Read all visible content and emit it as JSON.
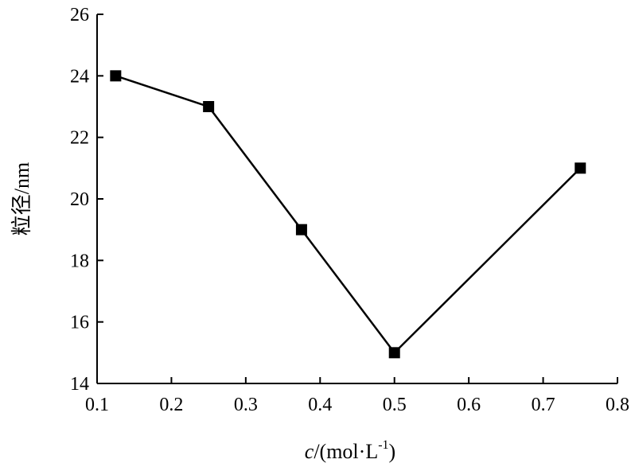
{
  "chart_data": {
    "type": "line",
    "xlabel": {
      "var": "c",
      "rest": "/(mol·L",
      "sup": "-1",
      "close": ")"
    },
    "ylabel": "粒径/nm",
    "xlim": [
      0.1,
      0.8
    ],
    "ylim": [
      14,
      26
    ],
    "xticks": [
      "0.1",
      "0.2",
      "0.3",
      "0.4",
      "0.5",
      "0.6",
      "0.7",
      "0.8"
    ],
    "yticks": [
      "14",
      "16",
      "18",
      "20",
      "22",
      "24",
      "26"
    ],
    "grid": false,
    "marker": "square",
    "line_color": "#000000",
    "series": [
      {
        "x": [
          0.125,
          0.25,
          0.375,
          0.5,
          0.75
        ],
        "y": [
          24,
          23,
          19,
          15,
          21
        ]
      }
    ]
  }
}
